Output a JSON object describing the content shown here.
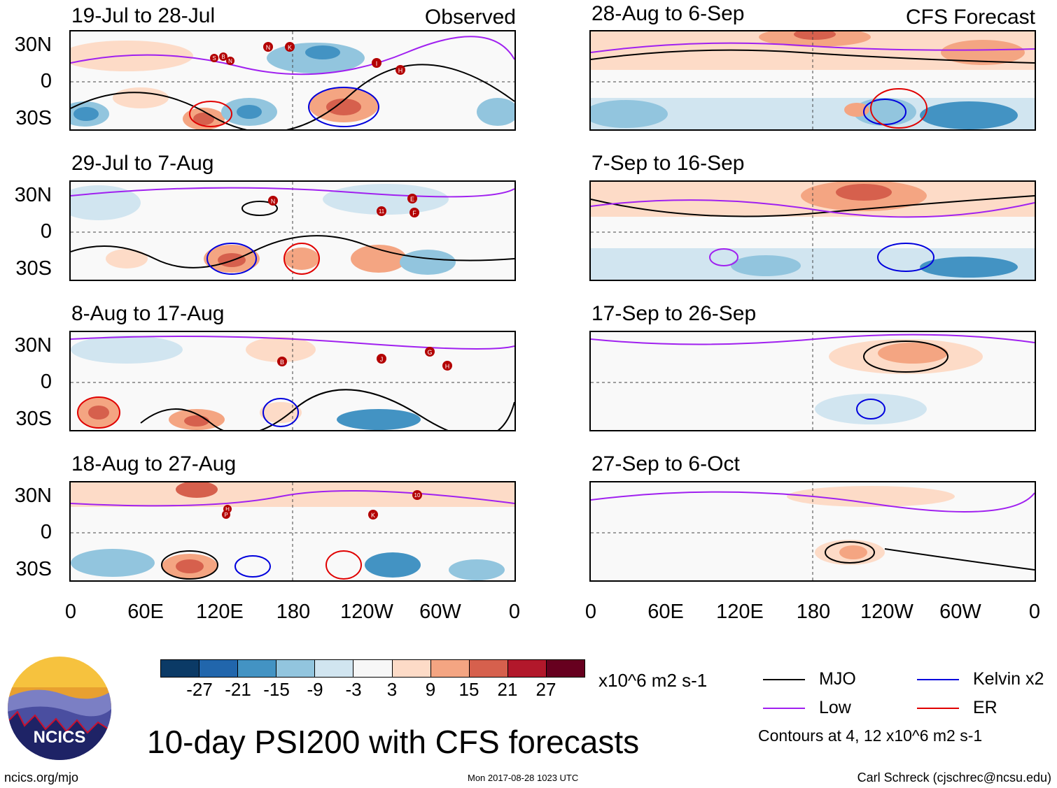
{
  "panels": [
    {
      "title": "19-Jul to 28-Jul",
      "tag": "Observed",
      "storms": [
        "N",
        "K",
        "S",
        "B",
        "N",
        "I",
        "H"
      ]
    },
    {
      "title": "28-Aug to 6-Sep",
      "tag": "CFS Forecast",
      "storms": []
    },
    {
      "title": "29-Jul to 7-Aug",
      "tag": "",
      "storms": [
        "N",
        "E",
        "11",
        "F"
      ]
    },
    {
      "title": "7-Sep to 16-Sep",
      "tag": "",
      "storms": []
    },
    {
      "title": "8-Aug to 17-Aug",
      "tag": "",
      "storms": [
        "B",
        "J",
        "G",
        "H"
      ]
    },
    {
      "title": "17-Sep to 26-Sep",
      "tag": "",
      "storms": []
    },
    {
      "title": "18-Aug to 27-Aug",
      "tag": "",
      "storms": [
        "10",
        "H",
        "P",
        "K"
      ]
    },
    {
      "title": "27-Sep to 6-Oct",
      "tag": "",
      "storms": []
    }
  ],
  "y_ticks": [
    "30N",
    "0",
    "30S"
  ],
  "x_ticks": [
    "0",
    "60E",
    "120E",
    "180",
    "120W",
    "60W",
    "0"
  ],
  "colorbar": {
    "labels": [
      "-27",
      "-21",
      "-15",
      "-9",
      "-3",
      "3",
      "9",
      "15",
      "21",
      "27"
    ],
    "colors": [
      "#0b3a66",
      "#2166ac",
      "#4393c3",
      "#92c5de",
      "#d1e5f0",
      "#f7f7f7",
      "#fddbc7",
      "#f4a582",
      "#d6604d",
      "#b2182b",
      "#67001f"
    ],
    "units": "x10^6 m2 s-1"
  },
  "legend": {
    "items": [
      {
        "label": "MJO",
        "color": "#000000"
      },
      {
        "label": "Kelvin x2",
        "color": "#0000dd"
      },
      {
        "label": "Low",
        "color": "#a020f0"
      },
      {
        "label": "ER",
        "color": "#e00000"
      }
    ],
    "note": "Contours at 4, 12 x10^6 m2 s-1"
  },
  "main_title": "10-day PSI200 with CFS forecasts",
  "logo_text": "NCICS",
  "footer": {
    "left": "ncics.org/mjo",
    "center": "Mon 2017-08-28 1023 UTC",
    "right": "Carl Schreck (cjschrec@ncsu.edu)"
  }
}
